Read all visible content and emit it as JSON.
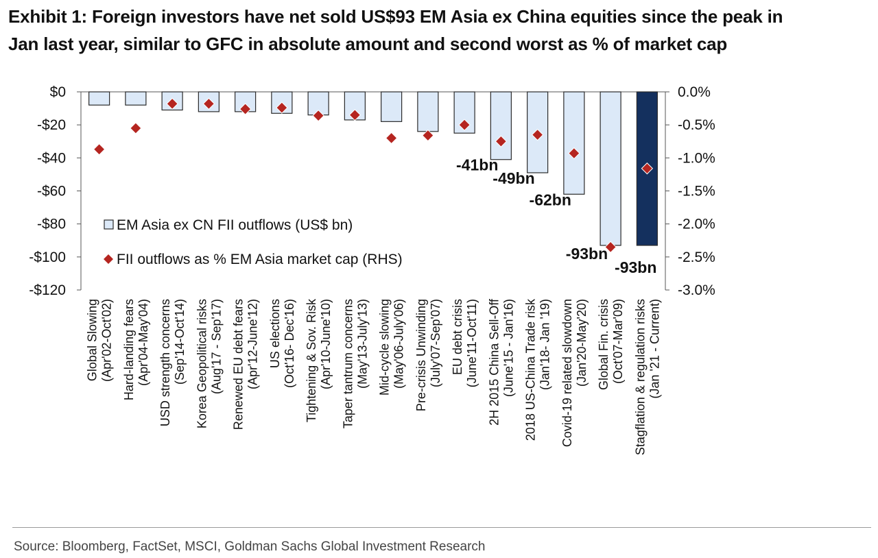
{
  "title": {
    "line1": "Exhibit 1: Foreign investors have net sold US$93 EM Asia ex China equities since the peak in",
    "line2": "Jan last year, similar to GFC in absolute amount and second worst as % of market cap"
  },
  "source": "Source: Bloomberg, FactSet, MSCI, Goldman Sachs Global Investment Research",
  "colors": {
    "bar_fill": "#dce9f8",
    "bar_highlight": "#14305e",
    "bar_stroke": "#2a2a2a",
    "marker": "#b52520"
  },
  "chart_data": {
    "type": "bar",
    "y_left": {
      "ylim": [
        -120,
        0
      ],
      "ticks": [
        0,
        -20,
        -40,
        -60,
        -80,
        -100,
        -120
      ],
      "tick_labels": [
        "$0",
        "-$20",
        "-$40",
        "-$60",
        "-$80",
        "-$100",
        "-$120"
      ]
    },
    "y_right": {
      "ylim": [
        -3.0,
        0.0
      ],
      "ticks": [
        0.0,
        -0.5,
        -1.0,
        -1.5,
        -2.0,
        -2.5,
        -3.0
      ],
      "tick_labels": [
        "0.0%",
        "-0.5%",
        "-1.0%",
        "-1.5%",
        "-2.0%",
        "-2.5%",
        "-3.0%"
      ]
    },
    "categories": [
      [
        "Global Slowing",
        "(Apr'02-Oct'02)"
      ],
      [
        "Hard-landing fears",
        "(Apr'04-May'04)"
      ],
      [
        "USD strength concerns",
        "(Sep'14-Oct'14)"
      ],
      [
        "Korea Geopolitical risks",
        "(Aug'17 - Sep'17)"
      ],
      [
        "Renewed EU debt fears",
        "(Apr'12-June'12)"
      ],
      [
        "US elections",
        "(Oct'16- Dec'16)"
      ],
      [
        "Tightening & Sov. Risk",
        "(Apr'10-June'10)"
      ],
      [
        "Taper tantrum concerns",
        "(May'13-July'13)"
      ],
      [
        "Mid-cycle slowing",
        "(May'06-July'06)"
      ],
      [
        "Pre-crisis Unwinding",
        "(July'07-Sep'07)"
      ],
      [
        "EU debt crisis",
        "(June'11-Oct'11)"
      ],
      [
        "2H 2015 China Sell-Off",
        "(June'15 - Jan'16)"
      ],
      [
        "2018 US-China Trade risk",
        "(Jan'18- Jan '19)"
      ],
      [
        "Covid-19 related slowdown",
        "(Jan'20-May'20)"
      ],
      [
        "Global Fin. crisis",
        "(Oct'07-Mar'09)"
      ],
      [
        "Stagflation & regulation risks",
        "(Jan '21 - Current)"
      ]
    ],
    "series": [
      {
        "name": "EM Asia ex CN FII outflows (US$ bn)",
        "axis": "left",
        "kind": "bar",
        "values": [
          -8,
          -8,
          -11,
          -12,
          -12,
          -13,
          -14,
          -17,
          -18,
          -24,
          -25,
          -41,
          -49,
          -62,
          -93,
          -93
        ],
        "highlight_index": 15
      },
      {
        "name": "FII outflows as % EM Asia market cap (RHS)",
        "axis": "right",
        "kind": "scatter",
        "marker": "diamond",
        "values": [
          -0.87,
          -0.55,
          -0.18,
          -0.18,
          -0.26,
          -0.24,
          -0.36,
          -0.35,
          -0.7,
          -0.66,
          -0.5,
          -0.75,
          -0.65,
          -0.93,
          -2.35,
          -1.16
        ]
      }
    ],
    "data_labels": [
      {
        "index": 11,
        "text": "-41bn"
      },
      {
        "index": 12,
        "text": "-49bn"
      },
      {
        "index": 13,
        "text": "-62bn"
      },
      {
        "index": 14,
        "text": "-93bn"
      },
      {
        "index": 15,
        "text": "-93bn"
      }
    ],
    "legend": {
      "placement": "bottom-left",
      "entries": [
        "EM Asia ex CN FII outflows (US$ bn)",
        "FII outflows as % EM Asia market cap (RHS)"
      ]
    }
  }
}
